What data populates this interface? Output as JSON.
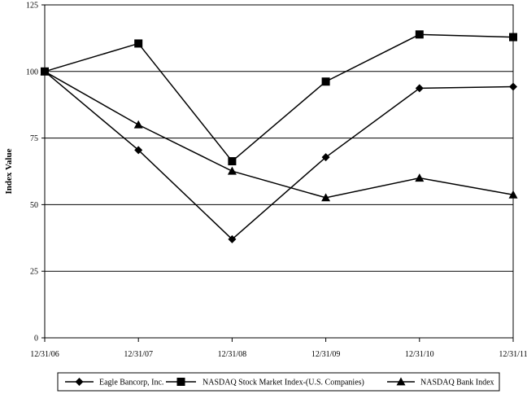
{
  "chart_data": {
    "type": "line",
    "title": "",
    "xlabel": "",
    "ylabel": "Index Value",
    "ylim": [
      0,
      125
    ],
    "yticks": [
      0,
      25,
      50,
      75,
      100,
      125
    ],
    "grid": "horizontal",
    "legend_position": "bottom",
    "categories": [
      "12/31/06",
      "12/31/07",
      "12/31/08",
      "12/31/09",
      "12/31/10",
      "12/31/11"
    ],
    "series": [
      {
        "name": "Eagle Bancorp, Inc.",
        "marker": "diamond",
        "values": [
          100,
          70.5,
          37,
          67.8,
          93.7,
          94.3
        ]
      },
      {
        "name": "NASDAQ Stock Market Index-(U.S. Companies)",
        "marker": "square",
        "values": [
          100,
          110.5,
          66.3,
          96.2,
          113.9,
          112.9
        ]
      },
      {
        "name": "NASDAQ Bank Index",
        "marker": "triangle",
        "values": [
          100,
          80,
          62.6,
          52.6,
          60,
          53.7
        ]
      }
    ]
  }
}
